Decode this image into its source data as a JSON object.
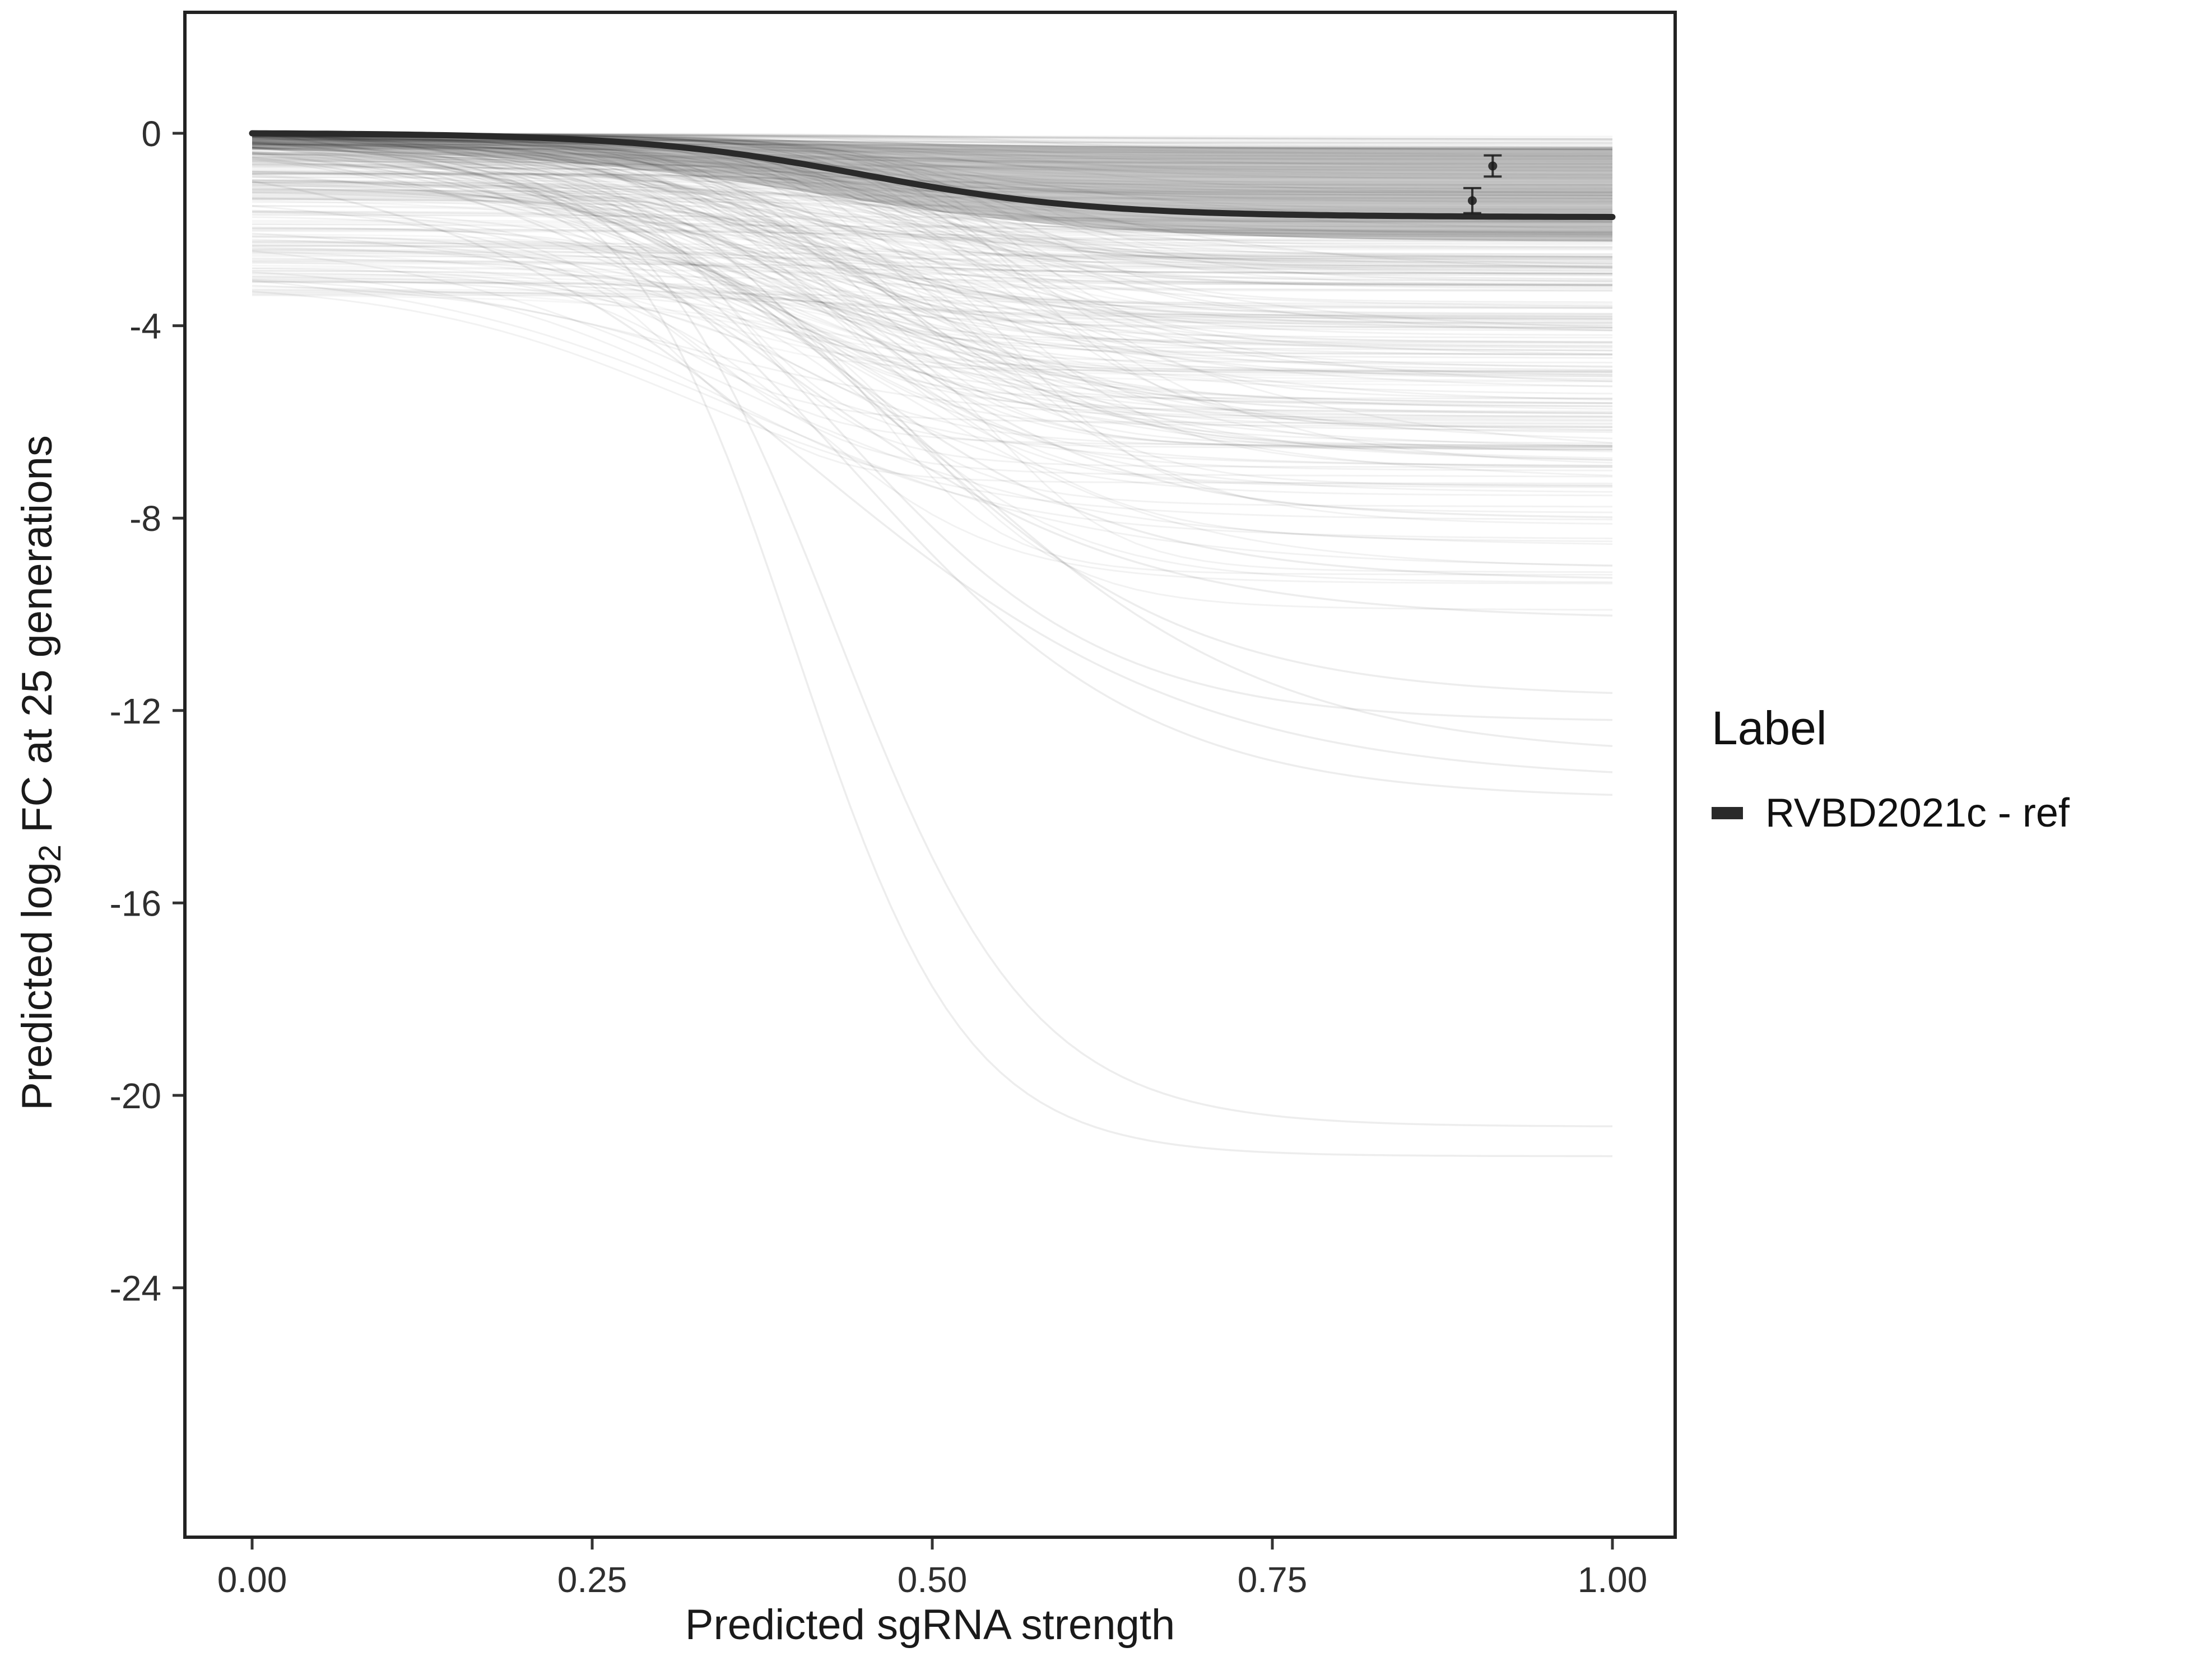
{
  "figure": {
    "background": "#ffffff"
  },
  "chart_data": {
    "type": "line",
    "title": "",
    "xlabel": "Predicted sgRNA strength",
    "ylabel": {
      "prefix": "Predicted  log",
      "sub": "2",
      "suffix": " FC at 25 generations"
    },
    "xlim": [
      0.0,
      1.0
    ],
    "ylim": [
      -29.2,
      2.5
    ],
    "grid": "off",
    "x_ticks": [
      "0.00",
      "0.25",
      "0.50",
      "0.75",
      "1.00"
    ],
    "x_tick_values": [
      0,
      0.25,
      0.5,
      0.75,
      1
    ],
    "y_ticks": [
      "0",
      "-4",
      "-8",
      "-12",
      "-16",
      "-20",
      "-24"
    ],
    "y_tick_values": [
      0,
      -4,
      -8,
      -12,
      -16,
      -20,
      -24
    ],
    "legend": {
      "title": "Label",
      "position": "right",
      "entries": [
        {
          "label": "RVBD2021c - ref",
          "color": "#2a2a2a",
          "shape": "line"
        }
      ]
    },
    "colors": {
      "reference": "#2a2a2a",
      "background_curves": "rgba(0,0,0,0.035)",
      "medium_curves": "rgba(0,0,0,0.05)",
      "deep_curves": "rgba(0,0,0,0.07)",
      "band_fill": "rgba(0,0,0,0.22)",
      "panel_border": "#222222",
      "axis_text": "#2f2f2f",
      "tick": "#333333"
    },
    "reference_curve": {
      "name": "RVBD2021c - ref",
      "model": "sigmoid",
      "y0": 0,
      "depth": 1.7,
      "x0": 0.45,
      "k": 12,
      "drift": -0.05,
      "width": 11,
      "points": [
        {
          "x": 0.0,
          "y": 0.0
        },
        {
          "x": 0.25,
          "y": -0.15
        },
        {
          "x": 0.35,
          "y": -0.4
        },
        {
          "x": 0.45,
          "y": -0.87
        },
        {
          "x": 0.55,
          "y": -1.3
        },
        {
          "x": 0.65,
          "y": -1.55
        },
        {
          "x": 0.75,
          "y": -1.65
        },
        {
          "x": 1.0,
          "y": -1.75
        }
      ]
    },
    "error_points": [
      {
        "x": 0.912,
        "y": -0.68,
        "err": 0.22
      },
      {
        "x": 0.897,
        "y": -1.4,
        "err": 0.26
      }
    ],
    "band": {
      "top": {
        "y0": 0.0,
        "depth": 0.3,
        "x0": 0.4,
        "k": 10,
        "drift": 0
      },
      "bottom": {
        "y0": -0.35,
        "depth": 1.9,
        "x0": 0.42,
        "k": 9,
        "drift": -0.05
      }
    },
    "deep_curves": [
      {
        "y0": -0.3,
        "depth": 7.8,
        "x0": 0.45,
        "k": 10,
        "drift": 0
      },
      {
        "y0": -0.2,
        "depth": 9.3,
        "x0": 0.42,
        "k": 9,
        "drift": 0
      },
      {
        "y0": -0.5,
        "depth": 10.0,
        "x0": 0.4,
        "k": 8,
        "drift": 0
      },
      {
        "y0": -0.3,
        "depth": 11.6,
        "x0": 0.47,
        "k": 9,
        "drift": 0
      },
      {
        "y0": -0.2,
        "depth": 12.2,
        "x0": 0.43,
        "k": 10,
        "drift": 0
      },
      {
        "y0": -0.4,
        "depth": 12.8,
        "x0": 0.5,
        "k": 8,
        "drift": 0
      },
      {
        "y0": -1.0,
        "depth": 13.2,
        "x0": 0.41,
        "k": 7,
        "drift": 0
      },
      {
        "y0": -0.3,
        "depth": 13.8,
        "x0": 0.44,
        "k": 9,
        "drift": 0
      },
      {
        "y0": -0.2,
        "depth": 20.5,
        "x0": 0.43,
        "k": 14,
        "drift": 0
      },
      {
        "y0": -0.3,
        "depth": 21.0,
        "x0": 0.4,
        "k": 16,
        "drift": 0
      }
    ],
    "background_generator": {
      "seed": 42,
      "count_shallow": 220,
      "shallow_depth_range": [
        0.05,
        2.8
      ],
      "count_medium": 130,
      "medium_depth_range": [
        2.2,
        7.0
      ],
      "y0_max_drop": 3.4,
      "x0_range": [
        0.3,
        0.58
      ],
      "k_range": [
        7,
        22
      ],
      "stroke_width": 3
    }
  }
}
